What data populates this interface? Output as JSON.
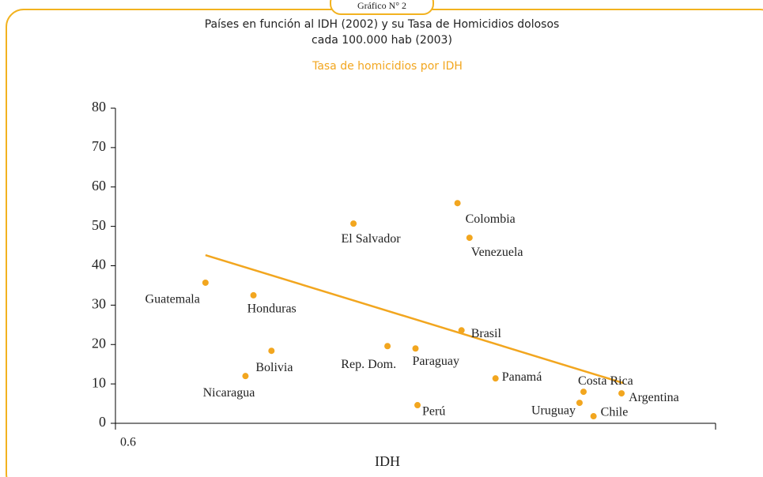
{
  "tab": "Gráfico N° 2",
  "chart_data": {
    "type": "scatter",
    "title": [
      "Países en función al IDH (2002) y su Tasa de Homicidios dolosos",
      "cada 100.000 hab (2003)"
    ],
    "subtitle": "Tasa de homicidios por IDH",
    "xlabel": "IDH",
    "color": "#f2a61f",
    "xlim": [
      0.6,
      0.9
    ],
    "xticks": [
      0.6
    ],
    "ylim": [
      0,
      80
    ],
    "yticks": [
      0,
      10,
      20,
      30,
      40,
      50,
      60,
      70,
      80
    ],
    "labels": [
      "Guatemala",
      "Honduras",
      "Nicaragua",
      "Bolivia",
      "El Salvador",
      "Rep. Dom.",
      "Paraguay",
      "Perú",
      "Colombia",
      "Venezuela",
      "Brasil",
      "Panamá",
      "Costa Rica",
      "Uruguay",
      "Chile",
      "Argentina"
    ],
    "x": [
      0.645,
      0.669,
      0.665,
      0.678,
      0.719,
      0.736,
      0.75,
      0.751,
      0.771,
      0.777,
      0.773,
      0.79,
      0.834,
      0.832,
      0.839,
      0.853
    ],
    "values": [
      35.7,
      32.5,
      12.0,
      18.4,
      50.7,
      19.6,
      19.0,
      4.6,
      55.9,
      47.1,
      23.6,
      11.4,
      8.0,
      5.2,
      1.8,
      7.6
    ],
    "trendline": {
      "x": [
        0.645,
        0.854
      ],
      "values": [
        42.7,
        10.2
      ]
    }
  }
}
